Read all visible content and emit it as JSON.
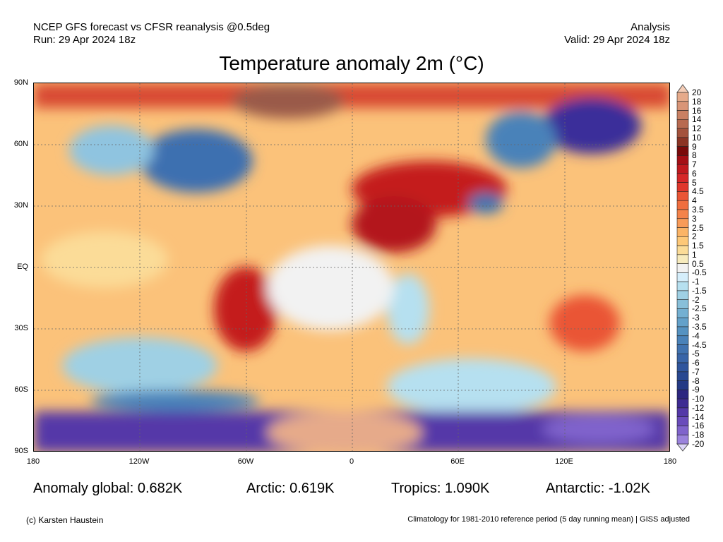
{
  "header": {
    "line1": "NCEP GFS forecast vs CFSR reanalysis @0.5deg",
    "line2": "Run: 29 Apr 2024 18z",
    "right1": "Analysis",
    "right2": "Valid: 29 Apr 2024 18z"
  },
  "title": "Temperature anomaly 2m (°C)",
  "lat_labels": [
    "90N",
    "60N",
    "30N",
    "EQ",
    "30S",
    "60S",
    "90S"
  ],
  "lon_labels": [
    "180",
    "120W",
    "60W",
    "0",
    "60E",
    "120E",
    "180"
  ],
  "stats": {
    "global": "Anomaly global: 0.682K",
    "arctic": "Arctic: 0.619K",
    "tropics": "Tropics: 1.090K",
    "antarctic": "Antarctic: -1.02K"
  },
  "footer": {
    "left": "(c) Karsten Haustein",
    "right": "Climatology for 1981-2010 reference period (5 day running mean) | GISS adjusted"
  },
  "colorbar": {
    "labels": [
      "20",
      "18",
      "16",
      "14",
      "12",
      "10",
      "9",
      "8",
      "7",
      "6",
      "5",
      "4.5",
      "4",
      "3.5",
      "3",
      "2.5",
      "2",
      "1.5",
      "1",
      "0.5",
      "-0.5",
      "-1",
      "-1.5",
      "-2",
      "-2.5",
      "-3",
      "-3.5",
      "-4",
      "-4.5",
      "-5",
      "-6",
      "-7",
      "-8",
      "-9",
      "-10",
      "-12",
      "-14",
      "-16",
      "-18",
      "-20"
    ],
    "top_color": "#f5cdb6",
    "bottom_color": "#dcd5f8",
    "colors": [
      "#e6aa8a",
      "#d99577",
      "#c98063",
      "#b86a50",
      "#a4523c",
      "#8c3424",
      "#7a0a0a",
      "#a50f15",
      "#c0191e",
      "#d62728",
      "#e0372c",
      "#ea5535",
      "#f06e3e",
      "#f4834a",
      "#f89b58",
      "#fbb466",
      "#fdc878",
      "#fbdc98",
      "#f7ebbd",
      "#f2f2f2",
      "#d5eefb",
      "#b6e0f0",
      "#9fd0e4",
      "#88bfd9",
      "#74b0d2",
      "#63a1ca",
      "#5592c1",
      "#4a82b9",
      "#4173b0",
      "#3965a8",
      "#2f559d",
      "#284891",
      "#243a85",
      "#2c2680",
      "#3e2b93",
      "#5438a8",
      "#6a4cbb",
      "#8064cc",
      "#9a82dc",
      "#b4a3e8",
      "#cbc0f2"
    ]
  }
}
